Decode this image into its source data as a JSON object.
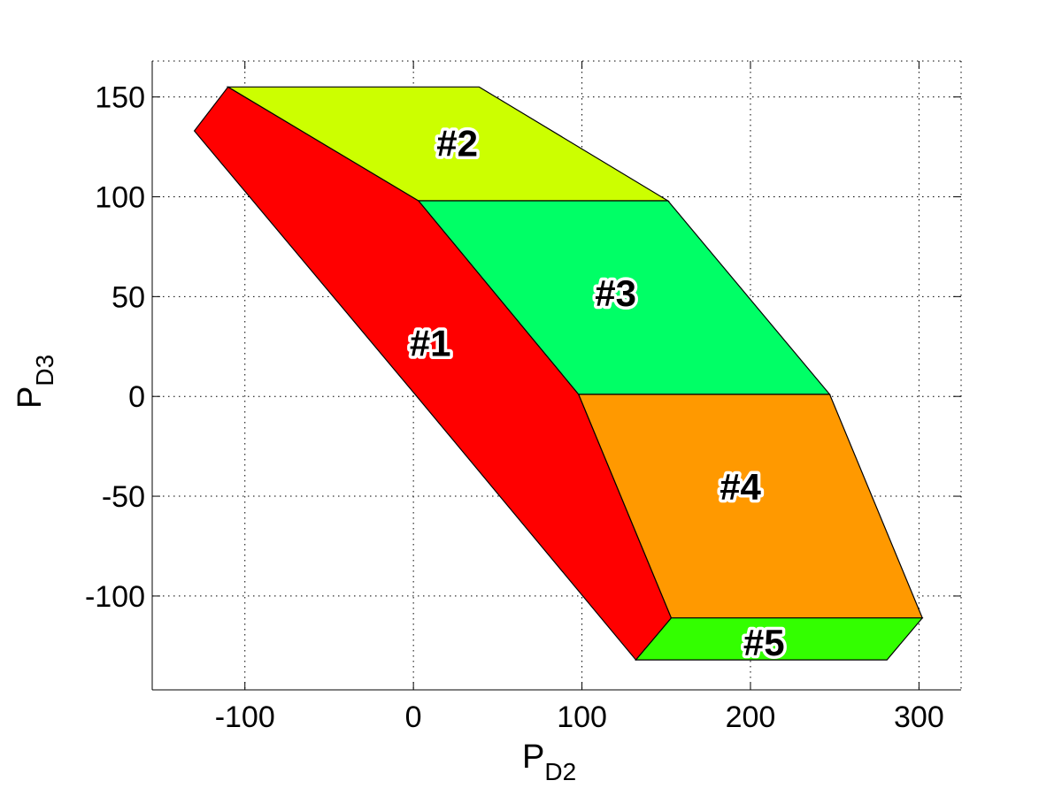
{
  "chart_data": {
    "type": "area",
    "title": "",
    "xlabel": {
      "main": "P",
      "sub": "D2"
    },
    "ylabel": {
      "main": "P",
      "sub": "D3"
    },
    "xlim": [
      -155,
      325
    ],
    "ylim": [
      -147,
      168
    ],
    "xticks": [
      -100,
      0,
      100,
      200,
      300
    ],
    "yticks": [
      -100,
      -50,
      0,
      50,
      100,
      150
    ],
    "xtick_labels": [
      "-100",
      "0",
      "100",
      "200",
      "300"
    ],
    "ytick_labels": [
      "-100",
      "-50",
      "0",
      "50",
      "100",
      "150"
    ],
    "grid": true,
    "grid_style": "dotted",
    "legend": "none",
    "regions": [
      {
        "label": "#1",
        "color": "#ff0000",
        "vertices": [
          [
            -130,
            133
          ],
          [
            -110,
            155
          ],
          [
            3,
            98
          ],
          [
            98,
            1
          ],
          [
            153,
            -111
          ],
          [
            132,
            -132
          ],
          [
            2,
            0
          ]
        ],
        "label_at": [
          10,
          27
        ]
      },
      {
        "label": "#2",
        "color": "#ccff00",
        "vertices": [
          [
            -110,
            155
          ],
          [
            39,
            155
          ],
          [
            151,
            98
          ],
          [
            3,
            98
          ]
        ],
        "label_at": [
          26,
          127
        ]
      },
      {
        "label": "#3",
        "color": "#00ff66",
        "vertices": [
          [
            3,
            98
          ],
          [
            151,
            98
          ],
          [
            247,
            1
          ],
          [
            98,
            1
          ]
        ],
        "label_at": [
          120,
          52
        ]
      },
      {
        "label": "#4",
        "color": "#ff9900",
        "vertices": [
          [
            98,
            1
          ],
          [
            247,
            1
          ],
          [
            302,
            -111
          ],
          [
            153,
            -111
          ]
        ],
        "label_at": [
          194,
          -45
        ]
      },
      {
        "label": "#5",
        "color": "#33ff00",
        "vertices": [
          [
            153,
            -111
          ],
          [
            302,
            -111
          ],
          [
            281,
            -132
          ],
          [
            132,
            -132
          ]
        ],
        "label_at": [
          208,
          -123
        ]
      }
    ]
  }
}
